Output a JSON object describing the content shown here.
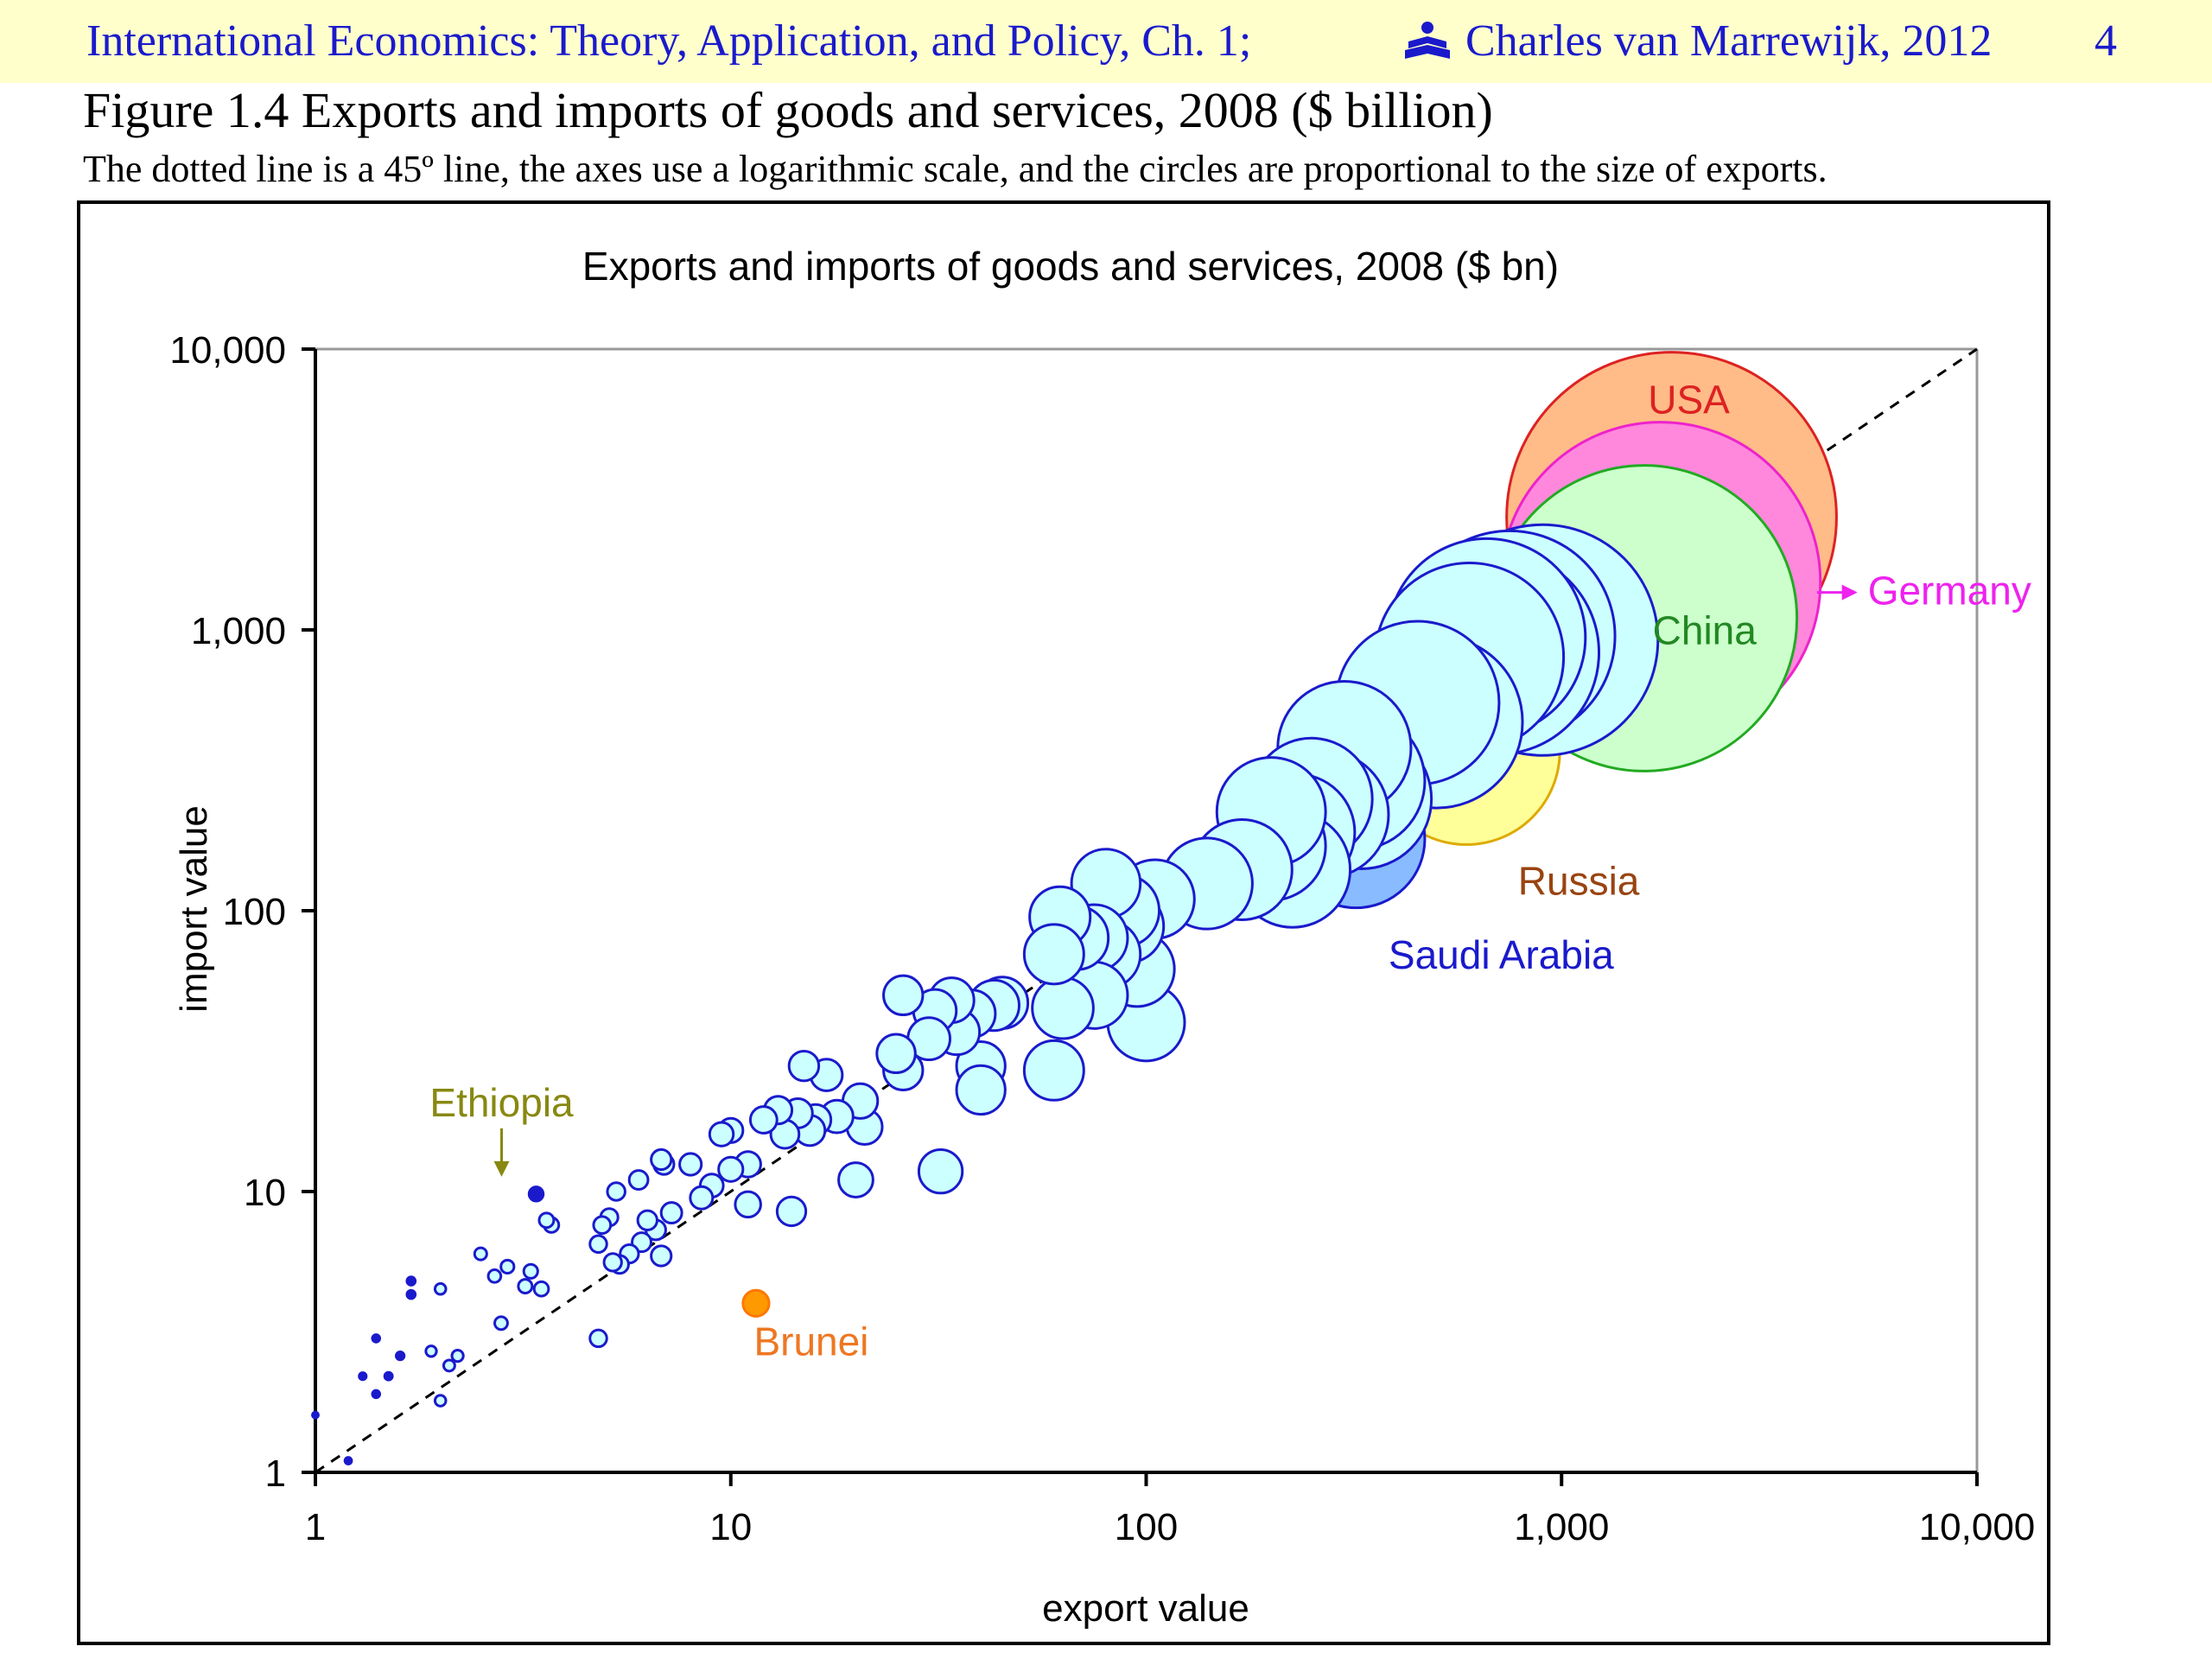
{
  "header": {
    "course_title": "International Economics: Theory, Application, and Policy, Ch. 1;",
    "author_credit": "Charles van Marrewijk, 2012",
    "page_number": "4",
    "logo_icon": "book-reader-icon"
  },
  "figure": {
    "title": "Figure 1.4 Exports and imports of goods and services, 2008 ($ billion)",
    "caption": "The dotted line is a 45º line, the axes use a logarithmic scale, and the circles are proportional to the size of exports."
  },
  "chart_data": {
    "type": "scatter",
    "title": "Exports and imports of goods and services, 2008 ($ bn)",
    "xlabel": "export value",
    "ylabel": "import value",
    "xscale": "log",
    "yscale": "log",
    "xlim": [
      1,
      10000
    ],
    "ylim": [
      1,
      10000
    ],
    "xticks": [
      "1",
      "10",
      "100",
      "1,000",
      "10,000"
    ],
    "yticks": [
      "1",
      "10",
      "100",
      "1,000",
      "10,000"
    ],
    "grid": false,
    "legend": "none",
    "reference_line": "45-degree dotted line",
    "default_bubble_fill": "#ccffff",
    "default_bubble_stroke": "#1a1acc",
    "highlighted": [
      {
        "label": "USA",
        "x": 1840,
        "y": 2520,
        "fill": "#ffbb88",
        "stroke": "#dd2222",
        "label_color": "#dd2222"
      },
      {
        "label": "Germany",
        "x": 1730,
        "y": 1480,
        "fill": "#ff88dd",
        "stroke": "#ee22cc",
        "label_color": "#ee22ee"
      },
      {
        "label": "China",
        "x": 1580,
        "y": 1100,
        "fill": "#ccffcc",
        "stroke": "#22aa22",
        "label_color": "#228822"
      },
      {
        "label": "Russia",
        "x": 590,
        "y": 370,
        "fill": "#ffff99",
        "stroke": "#ddaa00",
        "label_color": "#994411"
      },
      {
        "label": "Saudi Arabia",
        "x": 320,
        "y": 180,
        "fill": "#88bbff",
        "stroke": "#1a1acc",
        "label_color": "#1a1acc"
      },
      {
        "label": "Ethiopia",
        "x": 3.4,
        "y": 9.8,
        "fill": "#1a1acc",
        "stroke": "#1a1acc",
        "label_color": "#888811"
      },
      {
        "label": "Brunei",
        "x": 11.5,
        "y": 4.0,
        "fill": "#ff9900",
        "stroke": "#ff7700",
        "label_color": "#ee7722"
      }
    ],
    "points": [
      [
        1.0,
        1.6
      ],
      [
        1.2,
        1.1
      ],
      [
        1.3,
        2.2
      ],
      [
        1.4,
        3.0
      ],
      [
        1.4,
        1.9
      ],
      [
        1.5,
        2.2
      ],
      [
        1.6,
        2.6
      ],
      [
        1.7,
        4.8
      ],
      [
        1.7,
        4.3
      ],
      [
        1.9,
        2.7
      ],
      [
        2.0,
        4.5
      ],
      [
        2.0,
        1.8
      ],
      [
        2.1,
        2.4
      ],
      [
        2.2,
        2.6
      ],
      [
        2.5,
        6.0
      ],
      [
        2.7,
        5.0
      ],
      [
        2.8,
        3.4
      ],
      [
        2.9,
        5.4
      ],
      [
        3.2,
        4.6
      ],
      [
        3.3,
        5.2
      ],
      [
        3.5,
        4.5
      ],
      [
        3.6,
        7.9
      ],
      [
        3.7,
        7.6
      ],
      [
        4.8,
        3.0
      ],
      [
        4.8,
        6.5
      ],
      [
        4.9,
        7.6
      ],
      [
        5.1,
        8.1
      ],
      [
        5.2,
        5.6
      ],
      [
        5.3,
        10.0
      ],
      [
        5.4,
        5.5
      ],
      [
        5.7,
        6.0
      ],
      [
        6.0,
        11.0
      ],
      [
        6.1,
        6.6
      ],
      [
        6.3,
        7.9
      ],
      [
        6.6,
        7.3
      ],
      [
        6.8,
        5.9
      ],
      [
        6.8,
        13.0
      ],
      [
        6.9,
        12.5
      ],
      [
        7.2,
        8.4
      ],
      [
        8.0,
        12.5
      ],
      [
        8.5,
        9.5
      ],
      [
        9.0,
        10.5
      ],
      [
        9.5,
        16.0
      ],
      [
        10.0,
        12.0
      ],
      [
        10.0,
        16.5
      ],
      [
        11.0,
        9.0
      ],
      [
        11.0,
        12.5
      ],
      [
        12.0,
        18.0
      ],
      [
        13.0,
        19.5
      ],
      [
        13.5,
        16.0
      ],
      [
        14.0,
        8.5
      ],
      [
        14.5,
        19.0
      ],
      [
        15.0,
        28.0
      ],
      [
        15.5,
        16.5
      ],
      [
        16.0,
        18.0
      ],
      [
        17.0,
        26.0
      ],
      [
        18.0,
        18.5
      ],
      [
        20.0,
        11.0
      ],
      [
        20.5,
        21.0
      ],
      [
        21.0,
        17.0
      ],
      [
        25.0,
        31.0
      ],
      [
        26.0,
        27.0
      ],
      [
        26.0,
        50.0
      ],
      [
        30.0,
        35.0
      ],
      [
        31.0,
        44.0
      ],
      [
        32.0,
        11.8
      ],
      [
        34.0,
        48.0
      ],
      [
        35.0,
        37.0
      ],
      [
        38.0,
        43.0
      ],
      [
        40.0,
        28.0
      ],
      [
        40.0,
        23.0
      ],
      [
        43.0,
        46.0
      ],
      [
        45.0,
        47.0
      ],
      [
        60.0,
        70.0
      ],
      [
        60.0,
        27.0
      ],
      [
        62.0,
        95.0
      ],
      [
        63.0,
        45.0
      ],
      [
        68.0,
        80.0
      ],
      [
        75.0,
        80.0
      ],
      [
        75.0,
        50.0
      ],
      [
        80.0,
        70.0
      ],
      [
        80.0,
        125.0
      ],
      [
        88.0,
        100.0
      ],
      [
        90.0,
        88.0
      ],
      [
        95.0,
        62.0
      ],
      [
        100.0,
        40.0
      ],
      [
        105.0,
        110.0
      ],
      [
        140.0,
        125.0
      ],
      [
        170.0,
        140.0
      ],
      [
        200.0,
        170.0
      ],
      [
        200.0,
        225.0
      ],
      [
        230.0,
        190.0
      ],
      [
        225.0,
        140.0
      ],
      [
        250.0,
        250.0
      ],
      [
        270.0,
        220.0
      ],
      [
        300.0,
        380.0
      ],
      [
        320.0,
        290.0
      ],
      [
        330.0,
        250.0
      ],
      [
        450.0,
        550.0
      ],
      [
        500.0,
        470.0
      ],
      [
        600.0,
        800.0
      ],
      [
        660.0,
        940.0
      ],
      [
        700.0,
        830.0
      ],
      [
        750.0,
        950.0
      ],
      [
        900.0,
        920.0
      ]
    ]
  }
}
